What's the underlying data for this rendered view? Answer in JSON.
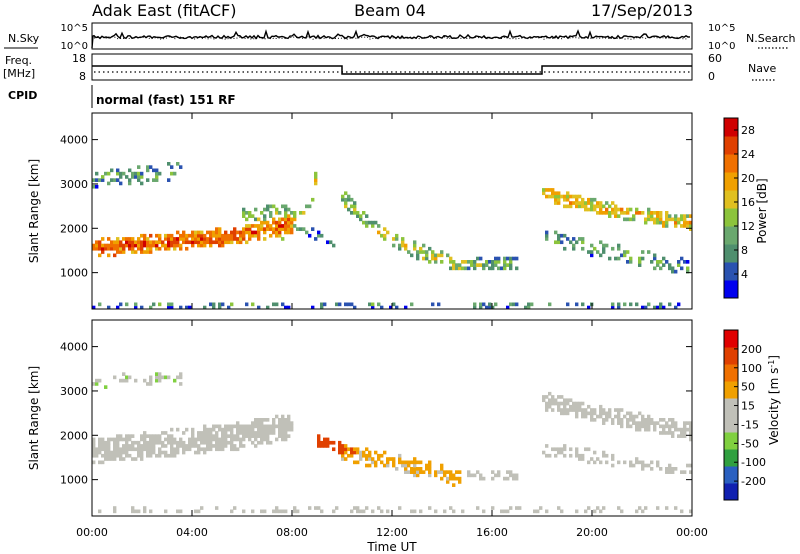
{
  "header": {
    "station": "Adak East (fitACF)",
    "beam": "Beam 04",
    "date": "17/Sep/2013"
  },
  "nsky_panel": {
    "left_label": "N.Sky",
    "right_label": "N.Search",
    "left_ticks": [
      "10^5",
      "10^0"
    ],
    "right_ticks": [
      "10^5",
      "10^0"
    ]
  },
  "freq_panel": {
    "left_label_1": "Freq.",
    "left_label_2": "[MHz]",
    "right_label": "Nave",
    "left_ticks": [
      "18",
      "8"
    ],
    "right_ticks": [
      "60",
      "0"
    ],
    "cpid_label": "CPID",
    "cpid_text": "normal (fast) 151 RF"
  },
  "colors": {
    "power_scale": [
      "#0000ee",
      "#2a52b0",
      "#4f8f6e",
      "#6aa86e",
      "#8cc43c",
      "#e0c020",
      "#f0a000",
      "#f07000",
      "#e04000",
      "#d00000"
    ],
    "velocity_scale": [
      "#1020b0",
      "#2a60c0",
      "#30a040",
      "#80d040",
      "#c0c0b8",
      "#c0c0b8",
      "#f0a000",
      "#f07000",
      "#e04000",
      "#e00000"
    ]
  },
  "chart_data": [
    {
      "type": "heatmap",
      "title": "Power",
      "xlabel": "Time UT",
      "ylabel": "Slant Range [km]",
      "x_ticks": [
        "00:00",
        "04:00",
        "08:00",
        "12:00",
        "16:00",
        "20:00",
        "00:00"
      ],
      "y_ticks": [
        "1000",
        "2000",
        "3000",
        "4000"
      ],
      "xlim": [
        0,
        24
      ],
      "ylim": [
        180,
        4600
      ],
      "colorbar": {
        "label": "Power [dB]",
        "ticks": [
          "4",
          "8",
          "12",
          "16",
          "20",
          "24",
          "28"
        ],
        "range": [
          0,
          30
        ]
      },
      "bands": [
        {
          "t": [
            0.0,
            6.0,
            8.0
          ],
          "r": [
            1550,
            1850,
            2100
          ],
          "w": 400,
          "value": 24,
          "density": 0.95
        },
        {
          "t": [
            0.0,
            3.6
          ],
          "r": [
            3100,
            3300
          ],
          "w": 400,
          "value": 10,
          "density": 0.5
        },
        {
          "t": [
            6.0,
            8.0
          ],
          "r": [
            2300,
            2400
          ],
          "w": 300,
          "value": 14,
          "density": 0.5
        },
        {
          "t": [
            7.5,
            8.8,
            9.0
          ],
          "r": [
            1800,
            2700,
            3300
          ],
          "w": 300,
          "value": 18,
          "density": 0.5
        },
        {
          "t": [
            8.0,
            10.0
          ],
          "r": [
            2100,
            1600
          ],
          "w": 300,
          "value": 8,
          "density": 0.4
        },
        {
          "t": [
            10.0,
            11.5,
            13.0,
            15.0
          ],
          "r": [
            2700,
            1900,
            1500,
            1100
          ],
          "w": 350,
          "value": 14,
          "density": 0.6
        },
        {
          "t": [
            15.0,
            17.0
          ],
          "r": [
            1200,
            1200
          ],
          "w": 250,
          "value": 12,
          "density": 0.6
        },
        {
          "t": [
            18.0,
            20.0,
            24.0
          ],
          "r": [
            2800,
            2500,
            2100
          ],
          "w": 350,
          "value": 18,
          "density": 0.8
        },
        {
          "t": [
            18.0,
            24.0
          ],
          "r": [
            1800,
            1100
          ],
          "w": 350,
          "value": 10,
          "density": 0.4
        },
        {
          "t": [
            0.0,
            24.0
          ],
          "r": [
            280,
            280
          ],
          "w": 150,
          "value": 8,
          "density": 0.3
        }
      ]
    },
    {
      "type": "heatmap",
      "title": "Velocity",
      "xlabel": "Time UT",
      "ylabel": "Slant Range [km]",
      "x_ticks": [
        "00:00",
        "04:00",
        "08:00",
        "12:00",
        "16:00",
        "20:00",
        "00:00"
      ],
      "y_ticks": [
        "1000",
        "2000",
        "3000",
        "4000"
      ],
      "xlim": [
        0,
        24
      ],
      "ylim": [
        180,
        4600
      ],
      "colorbar": {
        "label": "Velocity [m s^-1]",
        "ticks": [
          "200",
          "100",
          "50",
          "15",
          "-15",
          "-50",
          "-100",
          "-200"
        ],
        "range": [
          -250,
          250
        ]
      },
      "bands": [
        {
          "t": [
            0.0,
            6.0,
            8.0
          ],
          "r": [
            1650,
            2000,
            2200
          ],
          "w": 600,
          "value": 0,
          "density": 0.95
        },
        {
          "t": [
            0.0,
            3.6
          ],
          "r": [
            3200,
            3300
          ],
          "w": 300,
          "value": -40,
          "density": 0.4
        },
        {
          "t": [
            9.0,
            10.5
          ],
          "r": [
            1900,
            1600
          ],
          "w": 250,
          "value": 180,
          "density": 0.7
        },
        {
          "t": [
            10.0,
            12.0,
            15.0
          ],
          "r": [
            1600,
            1400,
            1000
          ],
          "w": 400,
          "value": 60,
          "density": 0.7
        },
        {
          "t": [
            15.0,
            17.0
          ],
          "r": [
            1100,
            1100
          ],
          "w": 200,
          "value": 0,
          "density": 0.6
        },
        {
          "t": [
            18.0,
            20.0,
            24.0
          ],
          "r": [
            2800,
            2500,
            2100
          ],
          "w": 400,
          "value": 0,
          "density": 0.8
        },
        {
          "t": [
            18.0,
            24.0
          ],
          "r": [
            1700,
            1200
          ],
          "w": 300,
          "value": 0,
          "density": 0.4
        },
        {
          "t": [
            0.0,
            24.0
          ],
          "r": [
            300,
            300
          ],
          "w": 150,
          "value": -20,
          "density": 0.3
        }
      ]
    }
  ]
}
